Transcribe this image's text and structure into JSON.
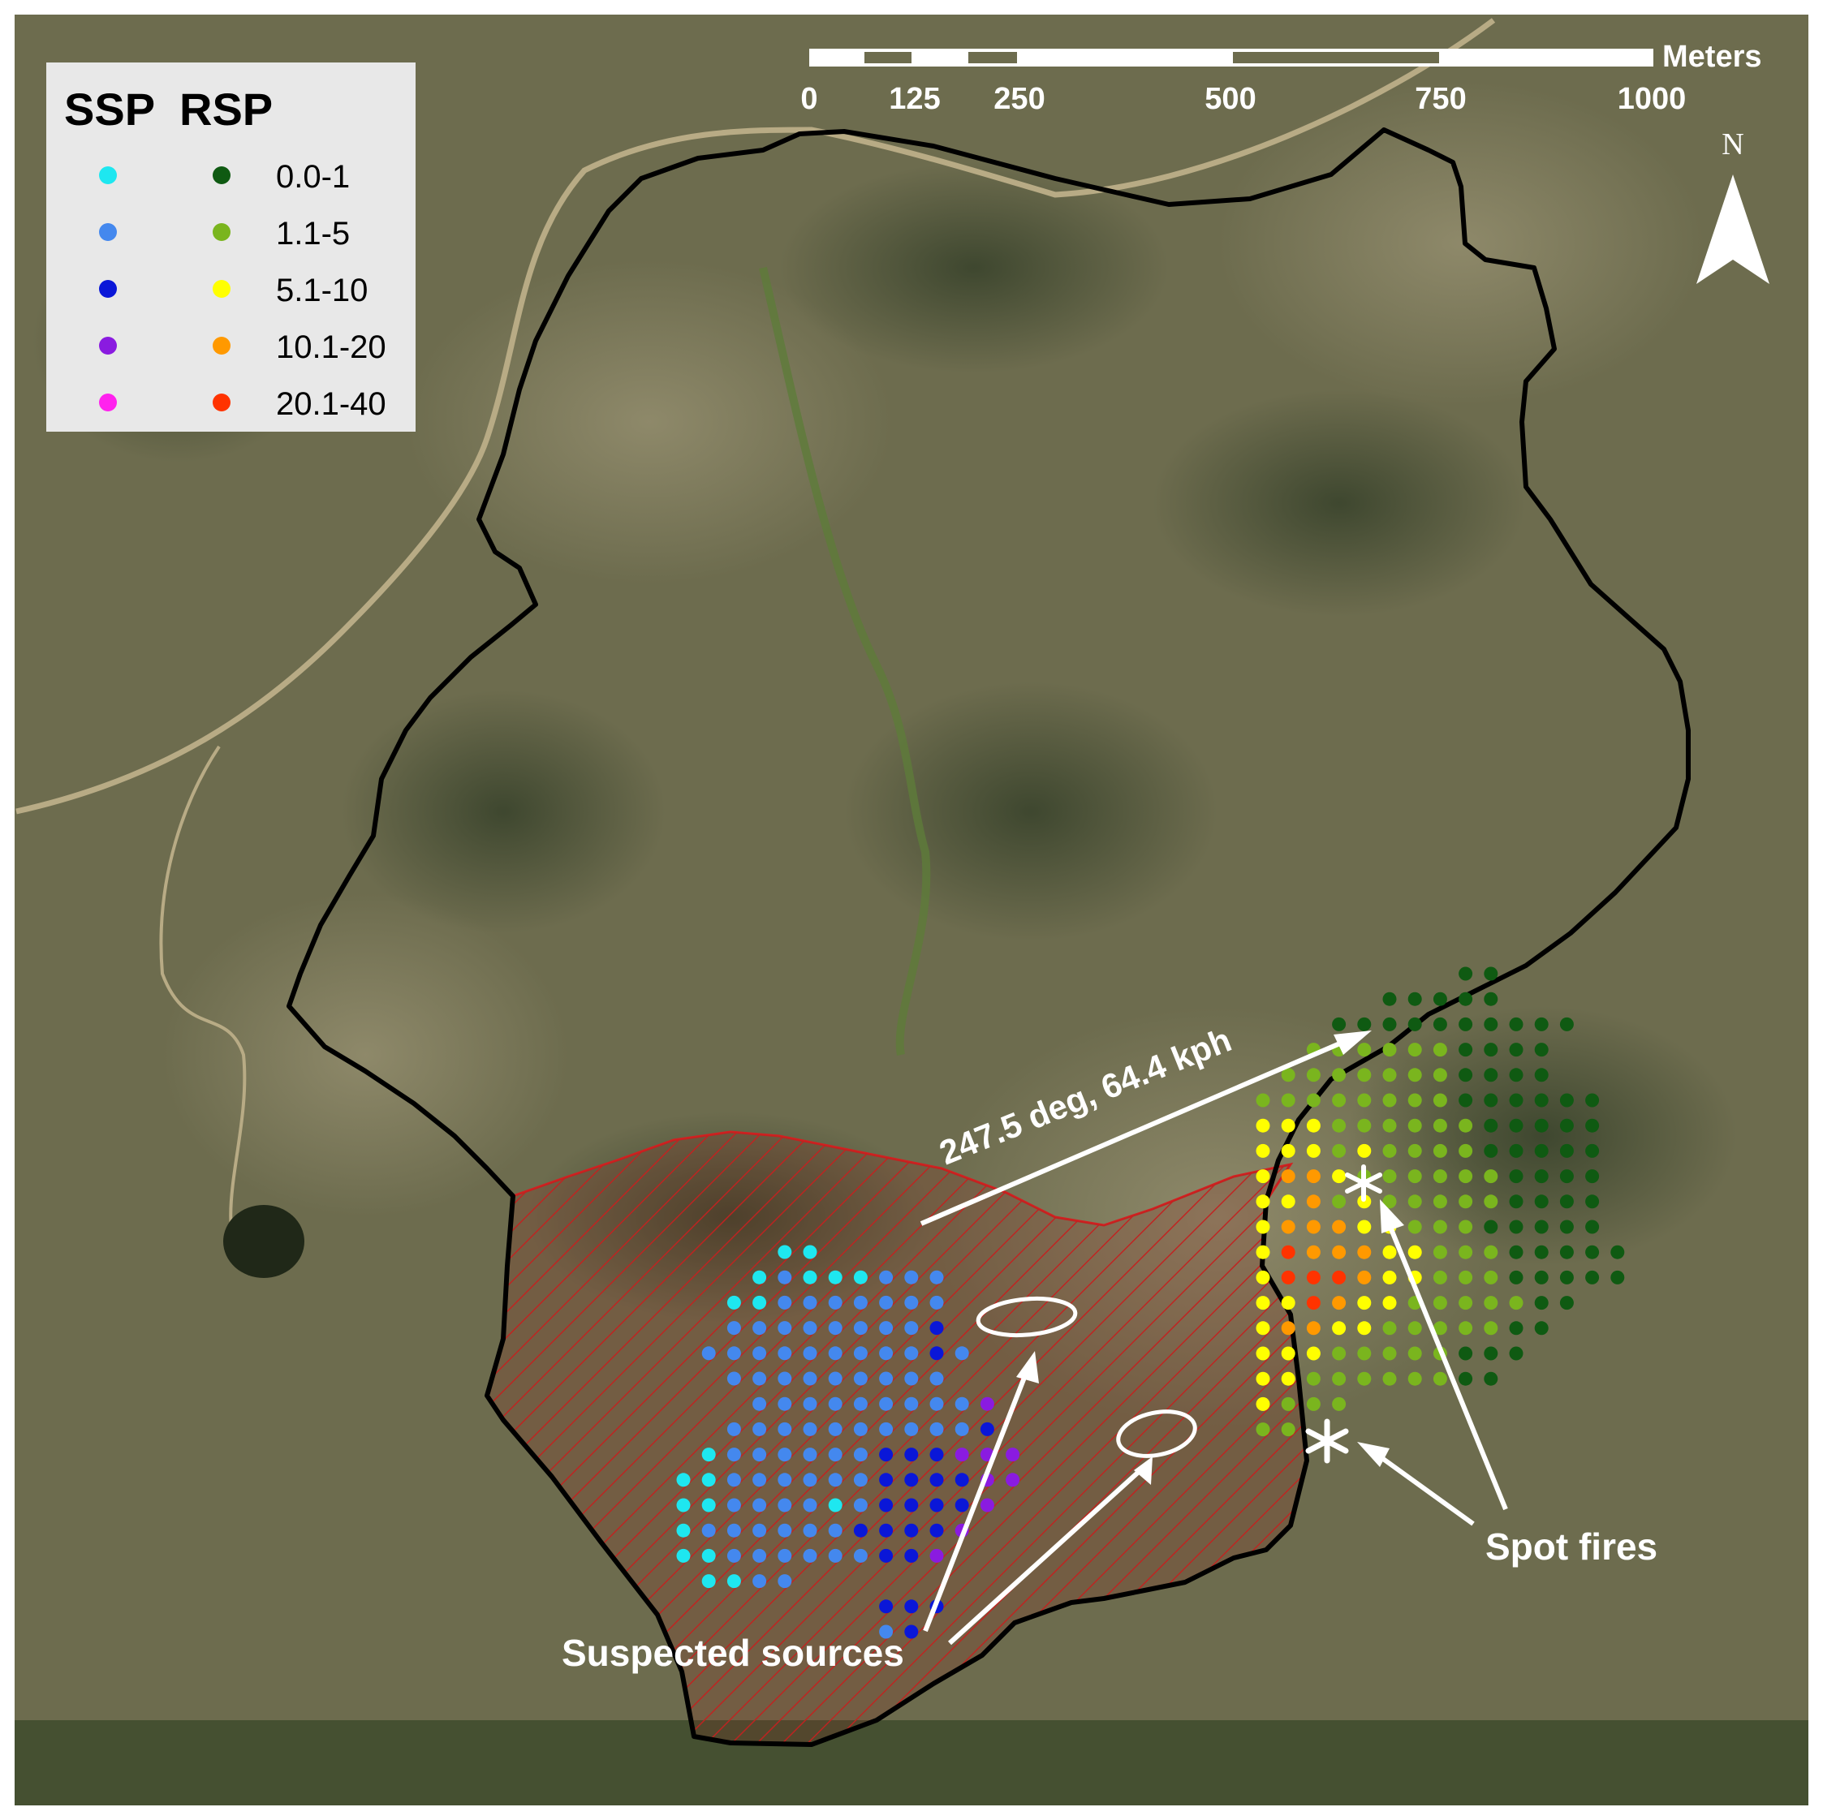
{
  "legend": {
    "headers": {
      "ssp": "SSP",
      "rsp": "RSP"
    },
    "rows": [
      {
        "label": "0.0-1",
        "ssp_color": "#1ee7f0",
        "rsp_color": "#0f5a12"
      },
      {
        "label": "1.1-5",
        "ssp_color": "#4488ee",
        "rsp_color": "#7ab51e"
      },
      {
        "label": "5.1-10",
        "ssp_color": "#0a17d8",
        "rsp_color": "#ffff00"
      },
      {
        "label": "10.1-20",
        "ssp_color": "#8a1be0",
        "rsp_color": "#ff9900"
      },
      {
        "label": "20.1-40",
        "ssp_color": "#ff22ee",
        "rsp_color": "#ff3300"
      }
    ]
  },
  "scale_bar": {
    "unit": "Meters",
    "ticks": [
      "0",
      "125",
      "250",
      "500",
      "750",
      "1000"
    ]
  },
  "north_arrow": {
    "label": "N"
  },
  "annotations": {
    "wind": "247.5 deg, 64.4 kph",
    "sources": "Suspected sources",
    "spot_fires": "Spot fires"
  },
  "colors": {
    "perimeter": "#000000",
    "burned_area_hatch": "#d32020",
    "imagery_base": "#6d6c4e"
  }
}
